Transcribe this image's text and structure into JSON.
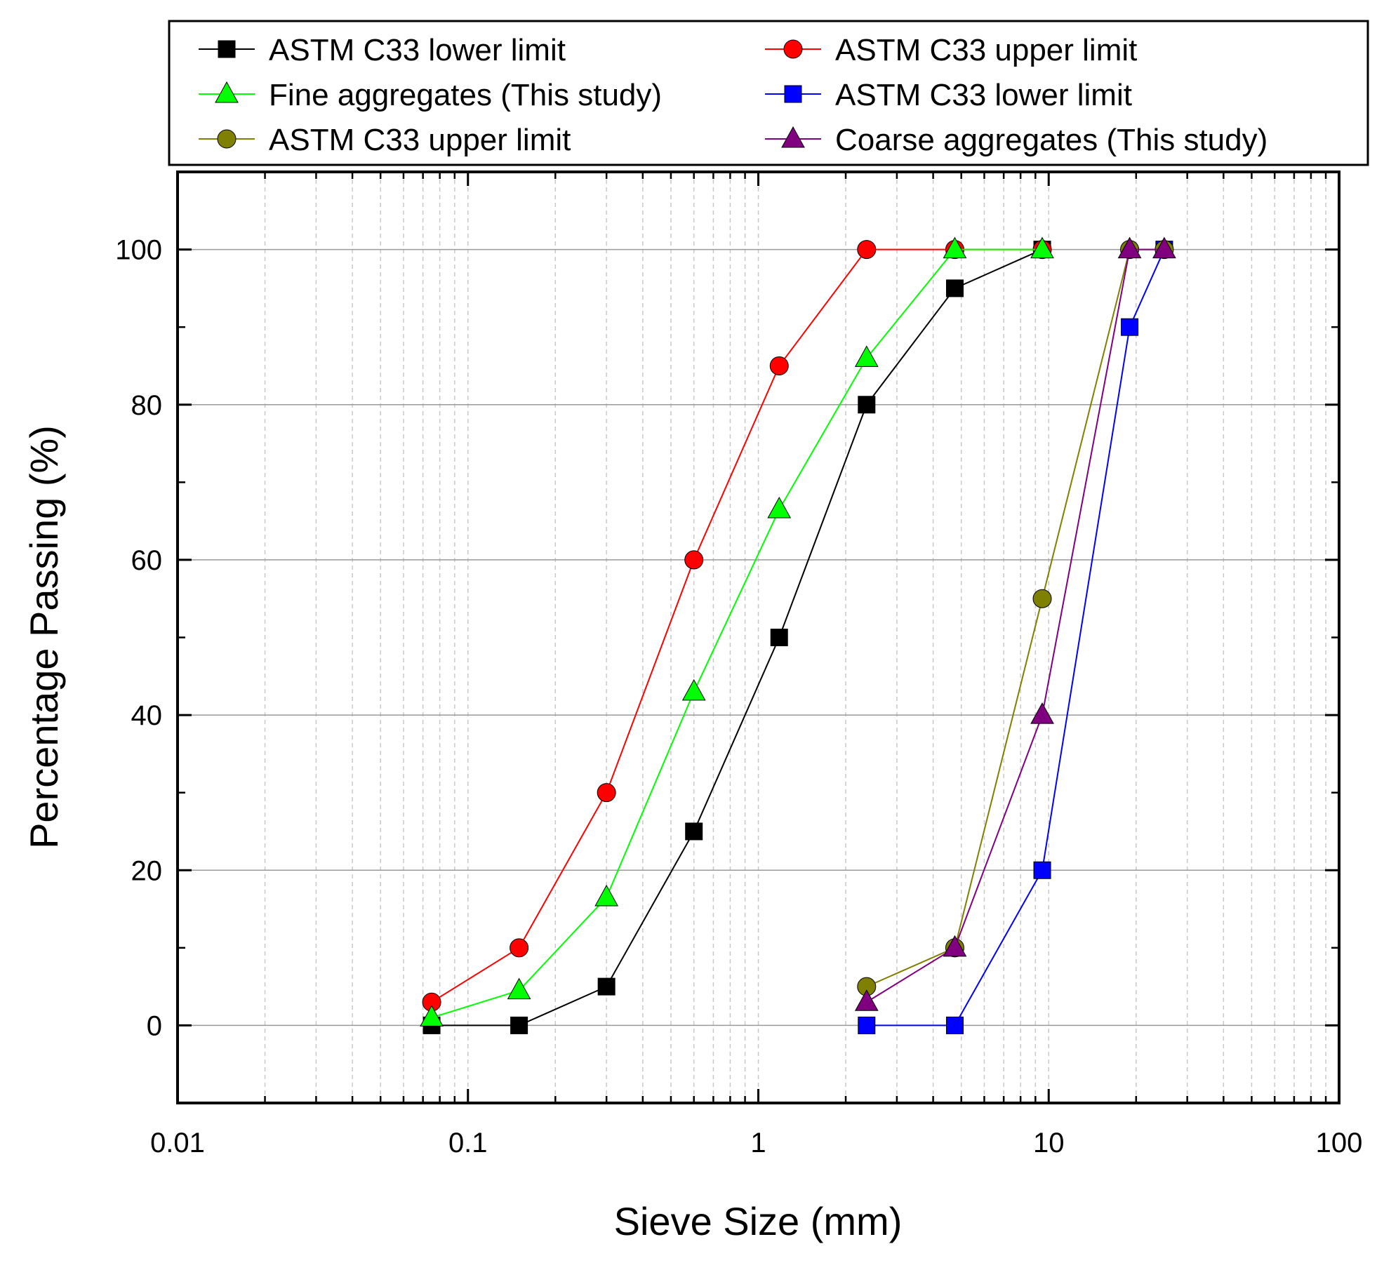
{
  "chart_data": {
    "type": "line",
    "xlabel": "Sieve Size (mm)",
    "ylabel": "Percentage Passing (%)",
    "x_scale": "log",
    "xlim": [
      0.01,
      100
    ],
    "ylim": [
      -10,
      110
    ],
    "x_ticks": [
      0.01,
      0.1,
      1,
      10,
      100
    ],
    "x_tick_labels": [
      "0.01",
      "0.1",
      "1",
      "10",
      "100"
    ],
    "y_ticks": [
      0,
      20,
      40,
      60,
      80,
      100
    ],
    "y_tick_labels": [
      "0",
      "20",
      "40",
      "60",
      "80",
      "100"
    ],
    "grid": true,
    "legend_position": "top",
    "series": [
      {
        "name": "ASTM C33 lower limit",
        "color": "#000000",
        "marker": "square",
        "x": [
          0.075,
          0.15,
          0.3,
          0.6,
          1.18,
          2.36,
          4.75,
          9.5
        ],
        "y": [
          0,
          0,
          5,
          25,
          50,
          80,
          95,
          100
        ]
      },
      {
        "name": "ASTM C33 upper limit",
        "color": "#ff0000",
        "marker": "circle",
        "x": [
          0.075,
          0.15,
          0.3,
          0.6,
          1.18,
          2.36,
          4.75,
          9.5
        ],
        "y": [
          3,
          10,
          30,
          60,
          85,
          100,
          100,
          100
        ]
      },
      {
        "name": "Fine aggregates (This study)",
        "color": "#00ff00",
        "marker": "triangle",
        "x": [
          0.075,
          0.15,
          0.3,
          0.6,
          1.18,
          2.36,
          4.75,
          9.5
        ],
        "y": [
          1,
          4.5,
          16.5,
          43,
          66.5,
          86,
          100,
          100
        ]
      },
      {
        "name": "ASTM C33 lower limit",
        "color": "#0000ff",
        "marker": "square",
        "x": [
          2.36,
          4.75,
          9.5,
          19,
          25
        ],
        "y": [
          0,
          0,
          20,
          90,
          100
        ]
      },
      {
        "name": "ASTM C33 upper limit",
        "color": "#808000",
        "marker": "circle",
        "x": [
          2.36,
          4.75,
          9.5,
          19,
          25
        ],
        "y": [
          5,
          10,
          55,
          100,
          100
        ]
      },
      {
        "name": "Coarse aggregates (This study)",
        "color": "#800080",
        "marker": "triangle",
        "x": [
          2.36,
          4.75,
          9.5,
          19,
          25
        ],
        "y": [
          3,
          10,
          40,
          100,
          100
        ]
      }
    ]
  }
}
